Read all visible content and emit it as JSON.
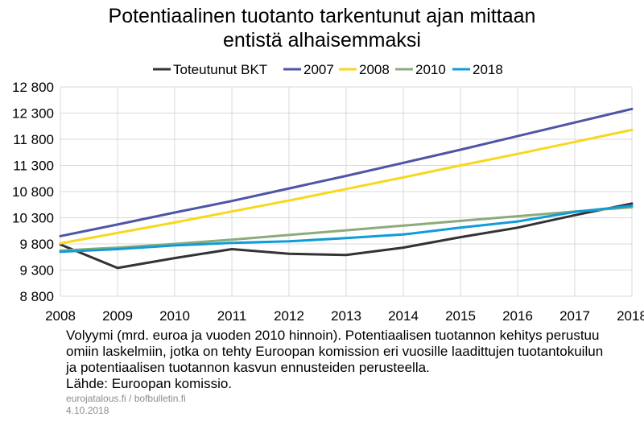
{
  "title_line1": "Potentiaalinen tuotanto tarkentunut ajan mittaan",
  "title_line2": "entistä alhaisemmaksi",
  "notes": [
    "Volyymi (mrd. euroa ja vuoden 2010 hinnoin). Potentiaalisen tuotannon kehitys perustuu",
    "omiin laskelmiin, jotka on tehty Euroopan komission eri vuosille laadittujen tuotantokuilun",
    "ja potentiaalisen tuotannon kasvun ennusteiden perusteella.",
    "Lähde: Euroopan komissio."
  ],
  "source_site": "eurojatalous.fi / bofbulletin.fi",
  "date": "4.10.2018",
  "chart_data": {
    "type": "line",
    "x": [
      "2008",
      "2009",
      "2010",
      "2011",
      "2012",
      "2013",
      "2014",
      "2015",
      "2016",
      "2017",
      "2018"
    ],
    "ylim": [
      8800,
      12800
    ],
    "yticks": [
      8800,
      9300,
      9800,
      10300,
      10800,
      11300,
      11800,
      12300,
      12800
    ],
    "ytick_labels": [
      "8 800",
      "9 300",
      "9 800",
      "10 300",
      "10 800",
      "11 300",
      "11 800",
      "12 300",
      "12 800"
    ],
    "grid": true,
    "legend_position": "top",
    "series": [
      {
        "name": "Toteutunut BKT",
        "color": "#333333",
        "values": [
          9790,
          9340,
          9530,
          9700,
          9610,
          9590,
          9730,
          9930,
          10110,
          10350,
          10570
        ]
      },
      {
        "name": "2007",
        "color": "#4e55a5",
        "values": [
          9950,
          10170,
          10400,
          10620,
          10860,
          11100,
          11350,
          11600,
          11860,
          12120,
          12380
        ]
      },
      {
        "name": "2008",
        "color": "#f7d81c",
        "values": [
          9810,
          10010,
          10210,
          10420,
          10630,
          10850,
          11070,
          11300,
          11520,
          11750,
          11980
        ]
      },
      {
        "name": "2010",
        "color": "#8cab7a",
        "values": [
          9670,
          9730,
          9800,
          9880,
          9970,
          10060,
          10150,
          10240,
          10330,
          10420,
          10500
        ]
      },
      {
        "name": "2018",
        "color": "#109cd8",
        "values": [
          9650,
          9700,
          9770,
          9820,
          9850,
          9910,
          9980,
          10110,
          10230,
          10410,
          10530
        ]
      }
    ]
  }
}
